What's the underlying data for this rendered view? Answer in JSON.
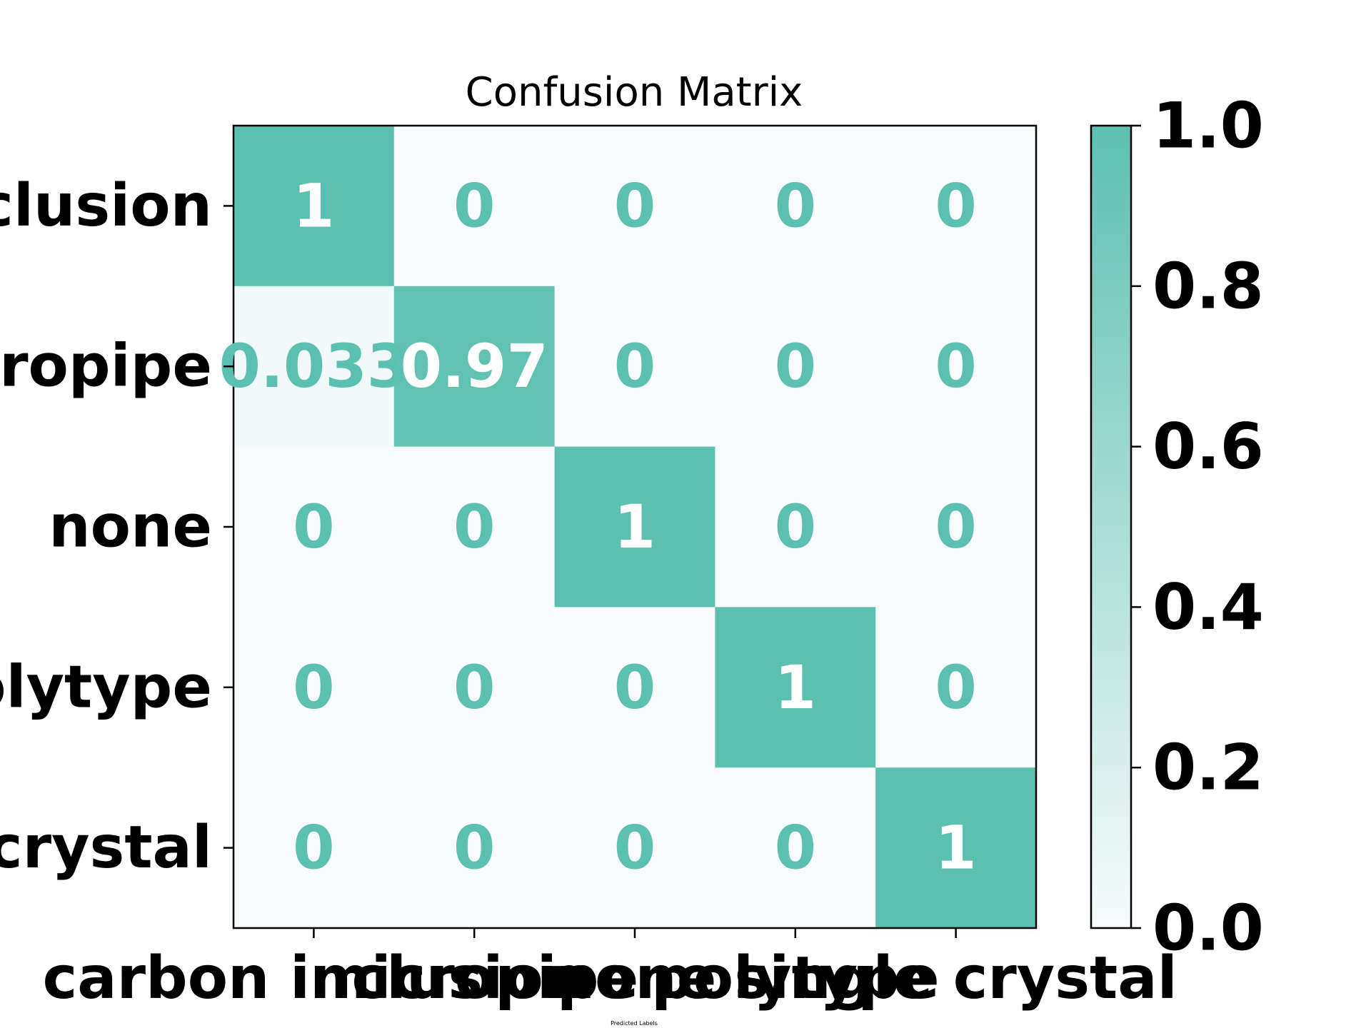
{
  "chart_data": {
    "type": "heatmap",
    "title": "Confusion Matrix",
    "xlabel": "Predicted Labels",
    "ylabel": "",
    "x_tick_labels": [
      "carbon inclusion",
      "micropipe",
      "none",
      "polytype",
      "single crystal"
    ],
    "y_tick_labels": [
      "carbon inclusion",
      "micropipe",
      "none",
      "polytype",
      "single crystal"
    ],
    "matrix": [
      [
        1,
        0,
        0,
        0,
        0
      ],
      [
        0.033,
        0.97,
        0,
        0,
        0
      ],
      [
        0,
        0,
        1,
        0,
        0
      ],
      [
        0,
        0,
        0,
        1,
        0
      ],
      [
        0,
        0,
        0,
        0,
        1
      ]
    ],
    "annotations": [
      [
        "1",
        "0",
        "0",
        "0",
        "0"
      ],
      [
        "0.033",
        "0.97",
        "0",
        "0",
        "0"
      ],
      [
        "0",
        "0",
        "1",
        "0",
        "0"
      ],
      [
        "0",
        "0",
        "0",
        "1",
        "0"
      ],
      [
        "0",
        "0",
        "0",
        "0",
        "1"
      ]
    ],
    "colorbar": {
      "range": [
        0.0,
        1.0
      ],
      "ticks": [
        "0.0",
        "0.2",
        "0.4",
        "0.6",
        "0.8",
        "1.0"
      ],
      "low_color": "#f7fbfc",
      "high_color": "#5cc0b0"
    },
    "annotation_colors": {
      "on_dark": "#ffffff",
      "on_light": "#5cc0b0"
    },
    "grid": false,
    "legend": "none"
  }
}
